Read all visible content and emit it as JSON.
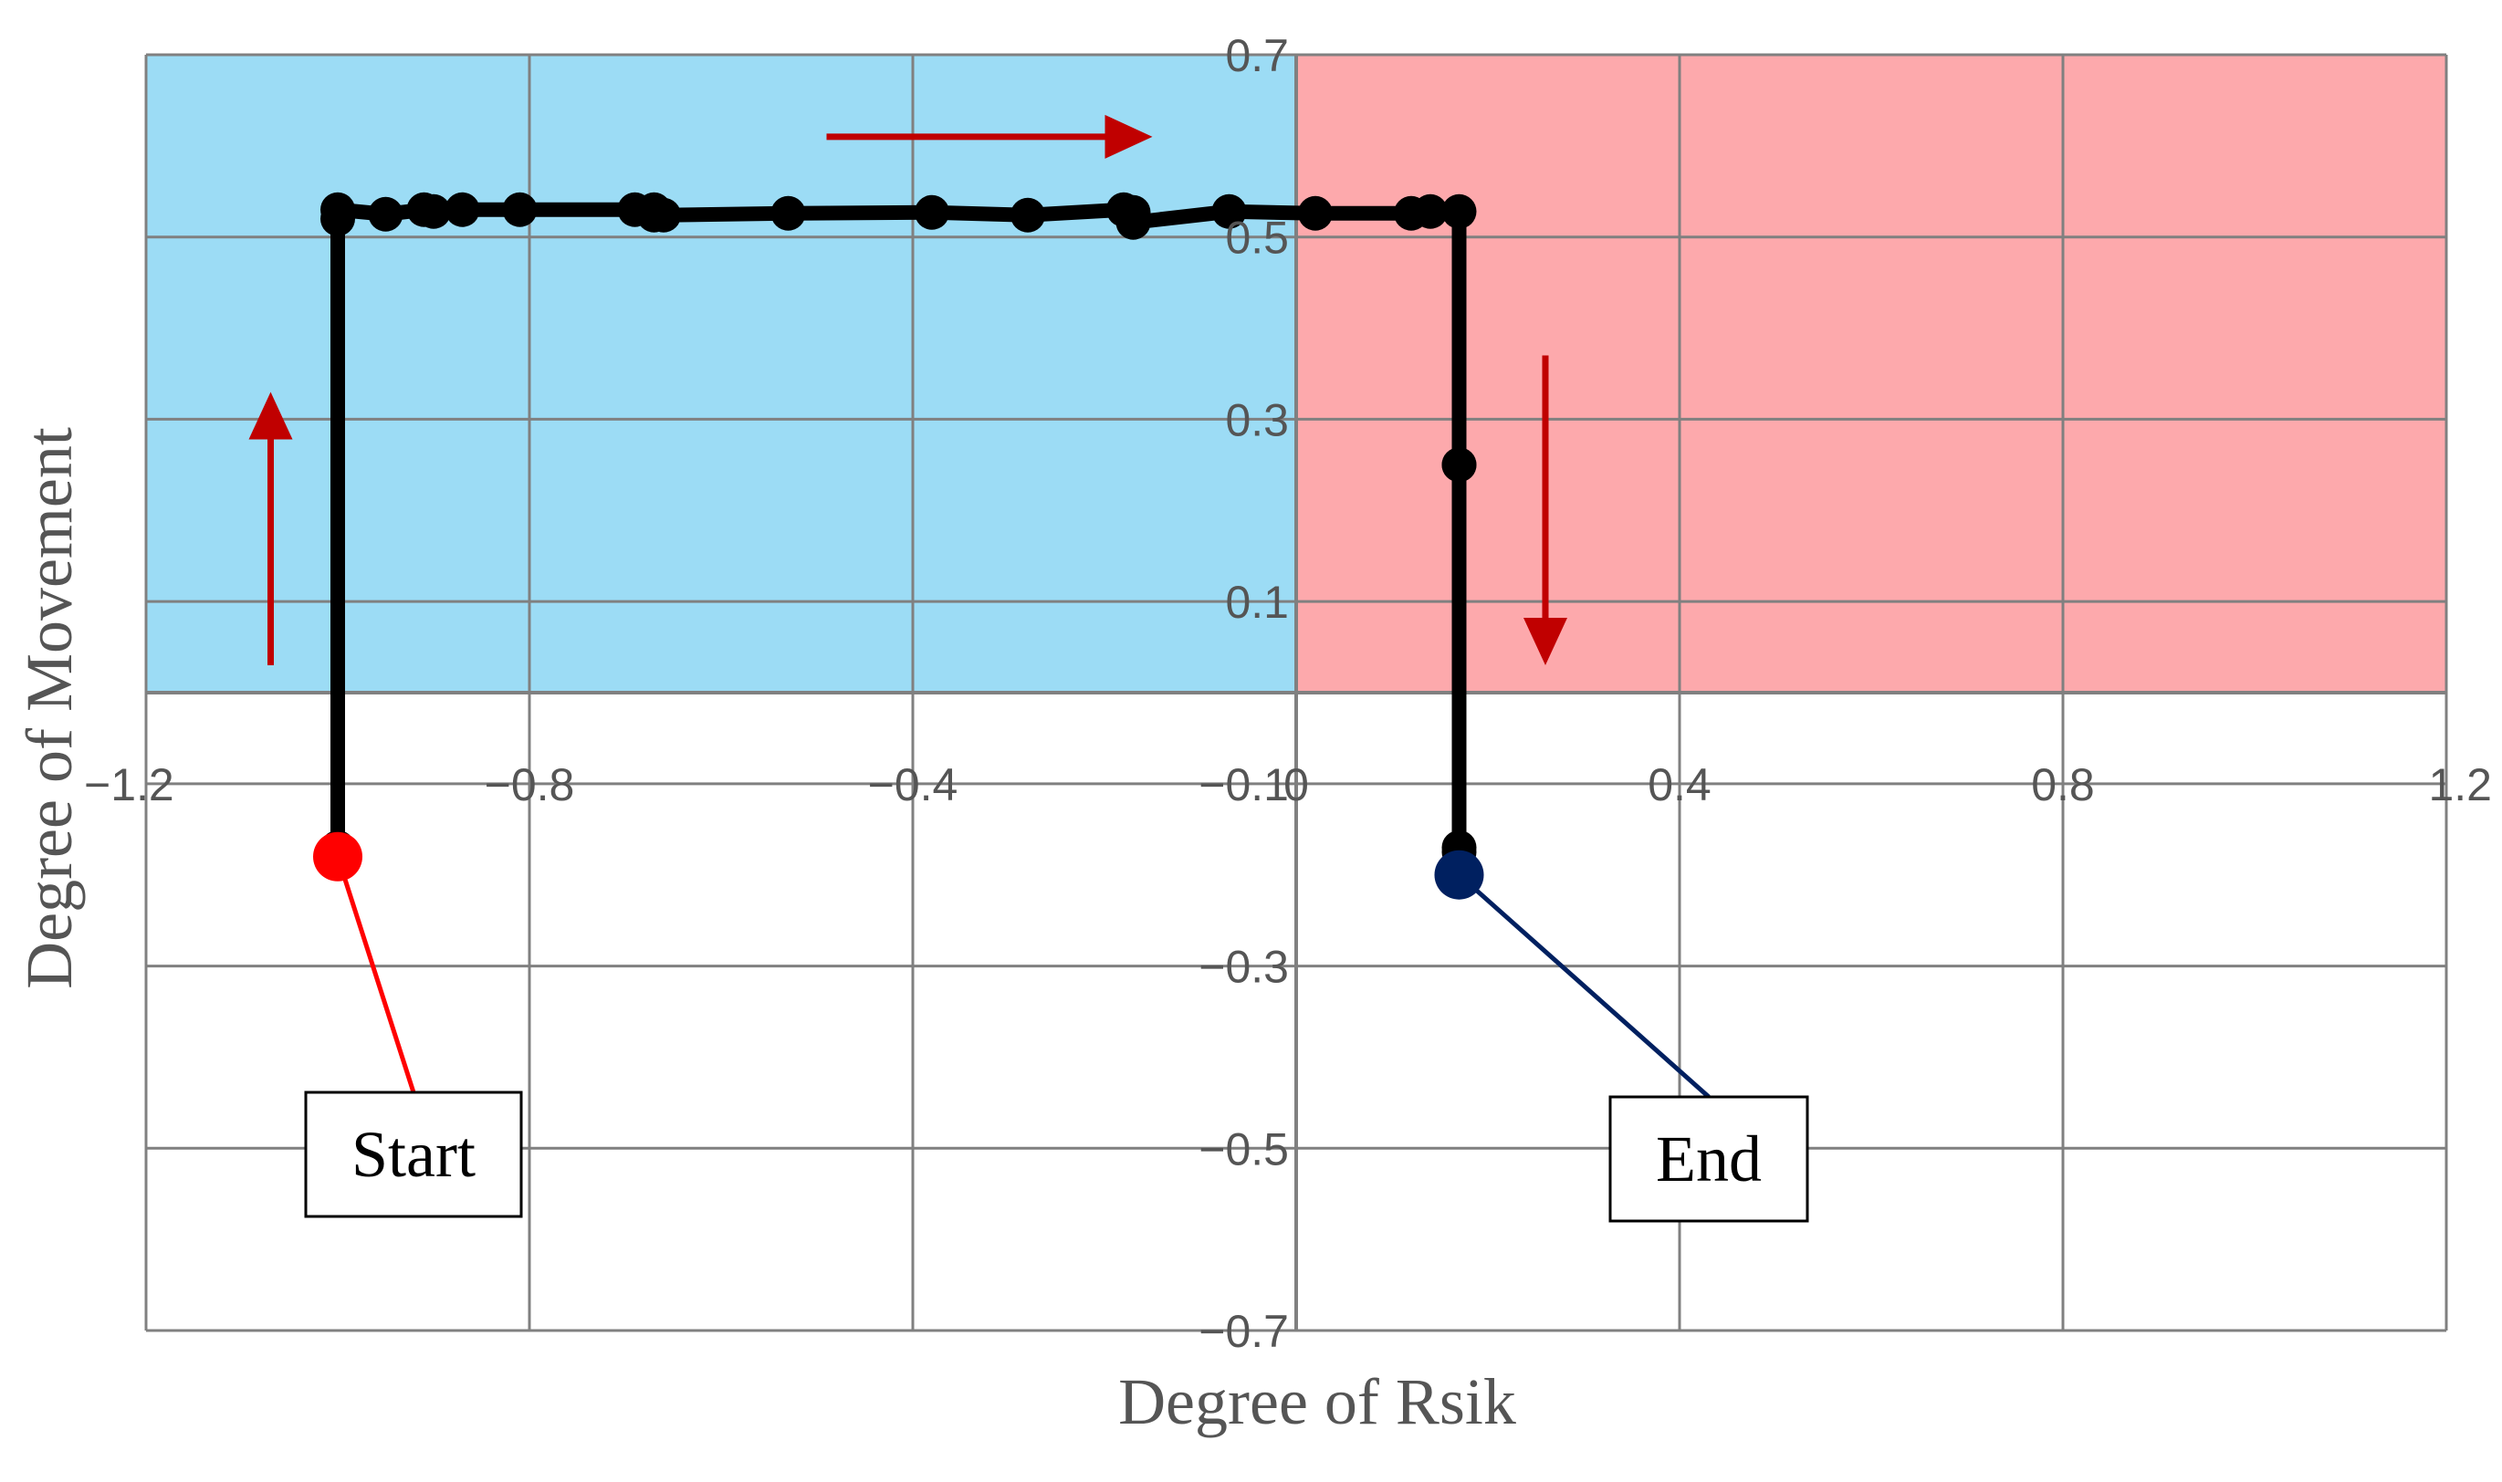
{
  "chart_data": {
    "type": "line",
    "xlabel": "Degree of Rsik",
    "ylabel": "Degree of Movement",
    "xlim": [
      -1.2,
      1.2
    ],
    "ylim": [
      -0.7,
      0.7
    ],
    "x_ticks": [
      -1.2,
      -0.8,
      -0.4,
      0,
      0.4,
      0.8,
      1.2
    ],
    "x_tick_labels": [
      "−1.2",
      "−0.8",
      "−0.4",
      "0",
      "0.4",
      "0.8",
      "1.2"
    ],
    "y_ticks": [
      0.7,
      0.5,
      0.3,
      0.1,
      -0.1,
      -0.3,
      -0.5,
      -0.7
    ],
    "y_tick_labels": [
      "0.7",
      "0.5",
      "0.3",
      "0.1",
      "−0.1",
      "−0.3",
      "−0.5",
      "−0.7"
    ],
    "grid": true,
    "regions": [
      {
        "x": [
          -1.2,
          0
        ],
        "y": [
          0,
          0.7
        ],
        "color": "#9cdcf5"
      },
      {
        "x": [
          0,
          1.2
        ],
        "y": [
          0,
          0.7
        ],
        "color": "#fda9ac"
      }
    ],
    "series": [
      {
        "color": "#000000",
        "x": [
          -1.0,
          -1.0,
          -1.0,
          -1.0,
          -0.95,
          -0.91,
          -0.9,
          -0.87,
          -0.81,
          -0.69,
          -0.67,
          -0.67,
          -0.66,
          -0.53,
          -0.38,
          -0.28,
          -0.18,
          -0.17,
          -0.17,
          -0.07,
          0.02,
          0.12,
          0.14,
          0.17,
          0.17,
          0.17,
          0.17,
          0.17,
          0.17
        ],
        "y": [
          -0.18,
          -0.17,
          0.52,
          0.53,
          0.525,
          0.53,
          0.528,
          0.53,
          0.53,
          0.53,
          0.53,
          0.524,
          0.524,
          0.526,
          0.527,
          0.524,
          0.53,
          0.527,
          0.516,
          0.528,
          0.526,
          0.526,
          0.528,
          0.528,
          0.25,
          0.25,
          -0.17,
          -0.175,
          -0.19
        ]
      }
    ],
    "start_point": {
      "x": -1.0,
      "y": -0.18,
      "color": "#ff0000",
      "label": "Start"
    },
    "end_point": {
      "x": 0.17,
      "y": -0.2,
      "color": "#002060",
      "label": "End"
    },
    "annotations": [
      {
        "type": "arrow",
        "direction": "up",
        "color": "#c00000",
        "from": [
          -1.07,
          0.03
        ],
        "to": [
          -1.07,
          0.33
        ]
      },
      {
        "type": "arrow",
        "direction": "right",
        "color": "#c00000",
        "from": [
          -0.49,
          0.61
        ],
        "to": [
          -0.15,
          0.61
        ]
      },
      {
        "type": "arrow",
        "direction": "down",
        "color": "#c00000",
        "from": [
          0.26,
          0.37
        ],
        "to": [
          0.26,
          0.03
        ]
      }
    ]
  }
}
